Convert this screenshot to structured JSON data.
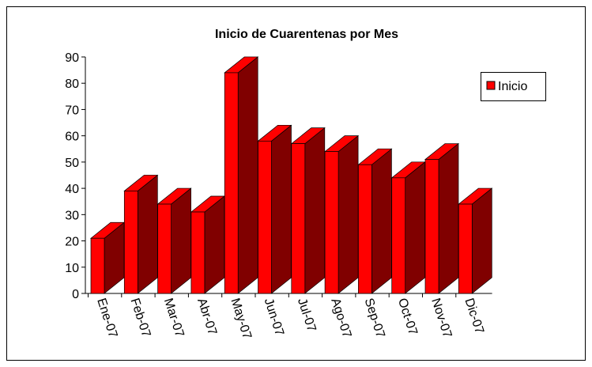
{
  "chart_data": {
    "type": "bar3d",
    "title": "Inicio de Cuarentenas por Mes",
    "categories": [
      "Ene-07",
      "Feb-07",
      "Mar-07",
      "Abr-07",
      "May-07",
      "Jun-07",
      "Jul-07",
      "Ago-07",
      "Sep-07",
      "Oct-07",
      "Nov-07",
      "Dic-07"
    ],
    "series": [
      {
        "name": "Inicio",
        "color": "#ff0000",
        "values": [
          21,
          39,
          34,
          31,
          84,
          58,
          57,
          54,
          49,
          44,
          51,
          34
        ]
      }
    ],
    "ylim": [
      0,
      90
    ],
    "yticks": [
      0,
      10,
      20,
      30,
      40,
      50,
      60,
      70,
      80,
      90
    ],
    "legend": "right"
  }
}
